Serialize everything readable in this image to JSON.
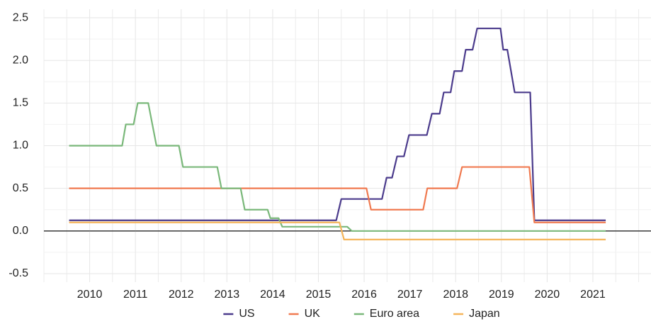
{
  "chart_data": {
    "type": "line",
    "xlim": [
      2009,
      2022.27
    ],
    "xticks": [
      2010,
      2011,
      2012,
      2013,
      2014,
      2015,
      2016,
      2017,
      2018,
      2019,
      2020,
      2021
    ],
    "ylim": [
      -0.6,
      2.6
    ],
    "yticks": [
      -0.5,
      {
        "value": 0,
        "label": "0.0"
      },
      0.5,
      {
        "value": 1,
        "label": "1.0"
      },
      1.5,
      {
        "value": 2,
        "label": "2.0"
      },
      2.5
    ],
    "grid": true,
    "legend": "bottom",
    "series": [
      {
        "name": "US",
        "color": "#4b3b8c",
        "x": [
          2009.55,
          2015.39,
          2015.5,
          2016.39,
          2016.49,
          2016.61,
          2016.72,
          2016.87,
          2016.98,
          2017.37,
          2017.48,
          2017.65,
          2017.74,
          2017.89,
          2017.97,
          2018.14,
          2018.22,
          2018.37,
          2018.47,
          2018.98,
          2019.04,
          2019.13,
          2019.29,
          2019.63,
          2019.72,
          2021.28
        ],
        "values": [
          0.125,
          0.125,
          0.375,
          0.375,
          0.625,
          0.625,
          0.875,
          0.875,
          1.125,
          1.125,
          1.375,
          1.375,
          1.625,
          1.625,
          1.875,
          1.875,
          2.125,
          2.125,
          2.375,
          2.375,
          2.125,
          2.125,
          1.625,
          1.625,
          0.125,
          0.125
        ]
      },
      {
        "name": "UK",
        "color": "#f07a50",
        "x": [
          2009.55,
          2016.05,
          2016.15,
          2017.29,
          2017.38,
          2018.03,
          2018.14,
          2019.61,
          2019.72,
          2021.28
        ],
        "values": [
          0.5,
          0.5,
          0.25,
          0.25,
          0.5,
          0.5,
          0.75,
          0.75,
          0.1,
          0.1
        ]
      },
      {
        "name": "Euro area",
        "color": "#7ab87a",
        "x": [
          2009.55,
          2010.71,
          2010.79,
          2010.96,
          2011.05,
          2011.28,
          2011.46,
          2011.95,
          2012.04,
          2012.79,
          2012.88,
          2013.3,
          2013.39,
          2013.89,
          2013.95,
          2014.13,
          2014.21,
          2015.63,
          2015.73,
          2021.28
        ],
        "values": [
          1,
          1,
          1.25,
          1.25,
          1.5,
          1.5,
          1,
          1,
          0.75,
          0.75,
          0.5,
          0.5,
          0.25,
          0.25,
          0.15,
          0.15,
          0.05,
          0.05,
          0,
          0
        ]
      },
      {
        "name": "Japan",
        "color": "#f5b55b",
        "x": [
          2009.55,
          2015.46,
          2015.56,
          2021.28
        ],
        "values": [
          0.1,
          0.1,
          -0.1,
          -0.1
        ]
      }
    ]
  }
}
